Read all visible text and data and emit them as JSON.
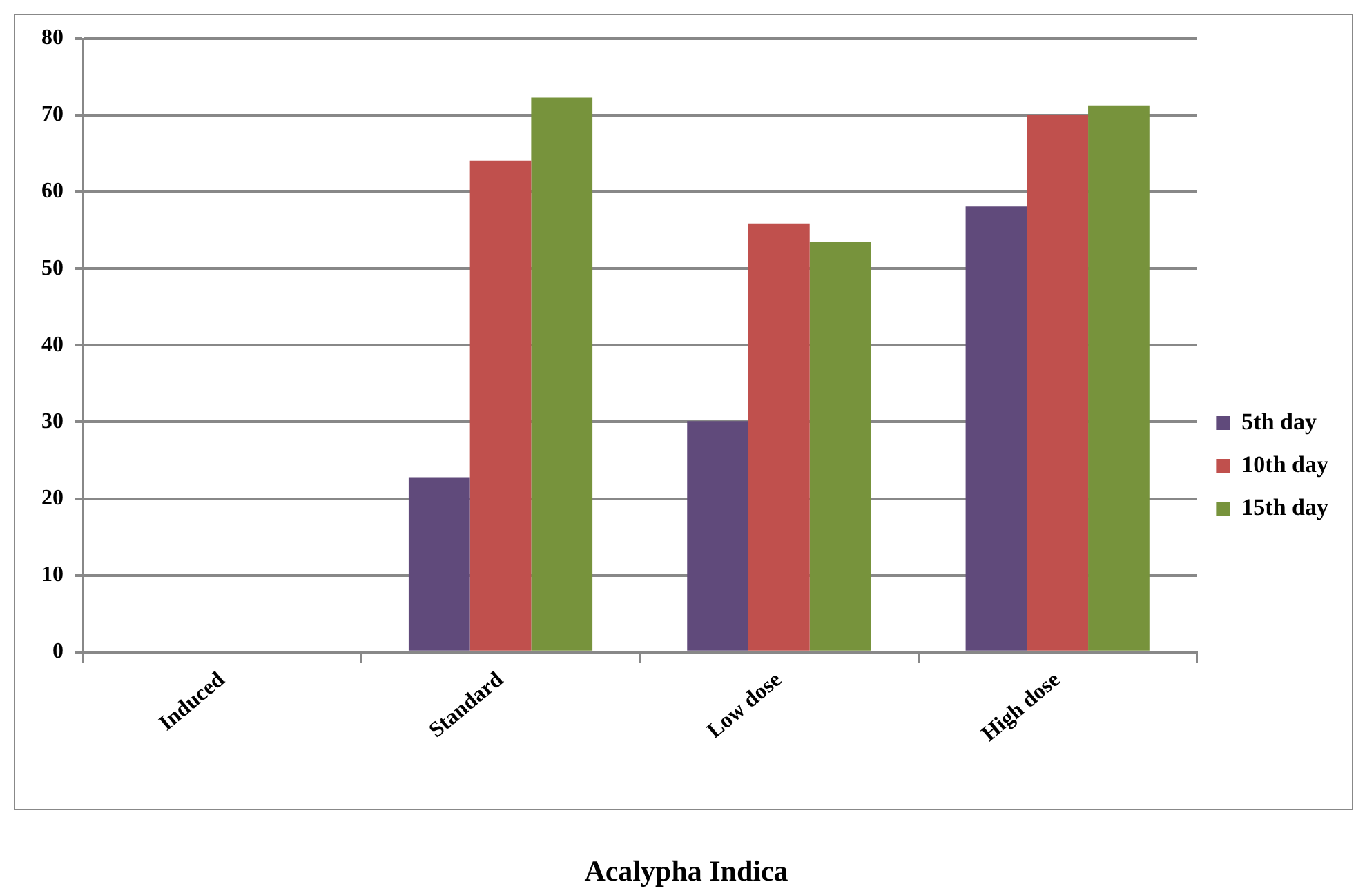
{
  "chart_data": {
    "type": "bar",
    "title": "Acalypha Indica",
    "categories": [
      "Induced",
      "Standard",
      "Low dose",
      "High dose"
    ],
    "series": [
      {
        "name": "5th day",
        "color": "#604a7b",
        "values": [
          0,
          22.8,
          30.1,
          58.1
        ]
      },
      {
        "name": "10th day",
        "color": "#c0504d",
        "values": [
          0,
          64.1,
          55.9,
          70
        ]
      },
      {
        "name": "15th day",
        "color": "#77933c",
        "values": [
          0,
          72.3,
          53.5,
          71.3
        ]
      }
    ],
    "ylim": [
      0,
      80
    ],
    "yticks": [
      0,
      10,
      20,
      30,
      40,
      50,
      60,
      70,
      80
    ],
    "grid": "y",
    "legend": "right"
  }
}
